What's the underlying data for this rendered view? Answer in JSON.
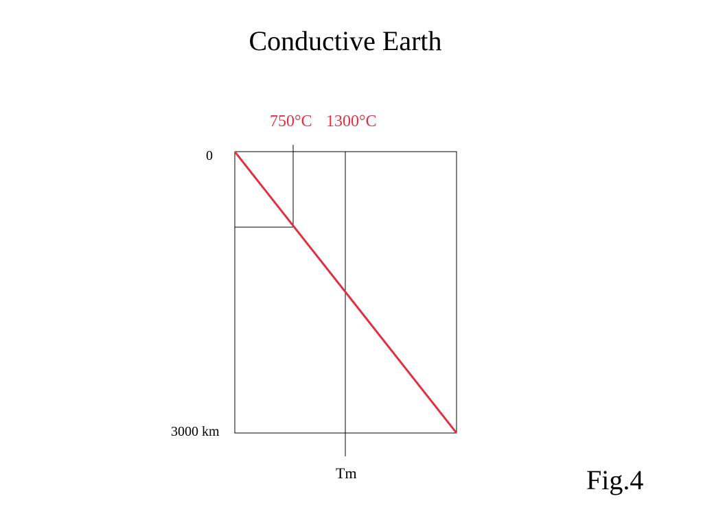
{
  "title": "Conductive Earth",
  "temperature_labels": {
    "left": "750°C",
    "right": "1300°C"
  },
  "depth_labels": {
    "top": "0",
    "bottom": "3000 km"
  },
  "melting_label": "Tm",
  "figure_label": "Fig.4",
  "colors": {
    "accent": "#e03040",
    "line": "#000000"
  }
}
